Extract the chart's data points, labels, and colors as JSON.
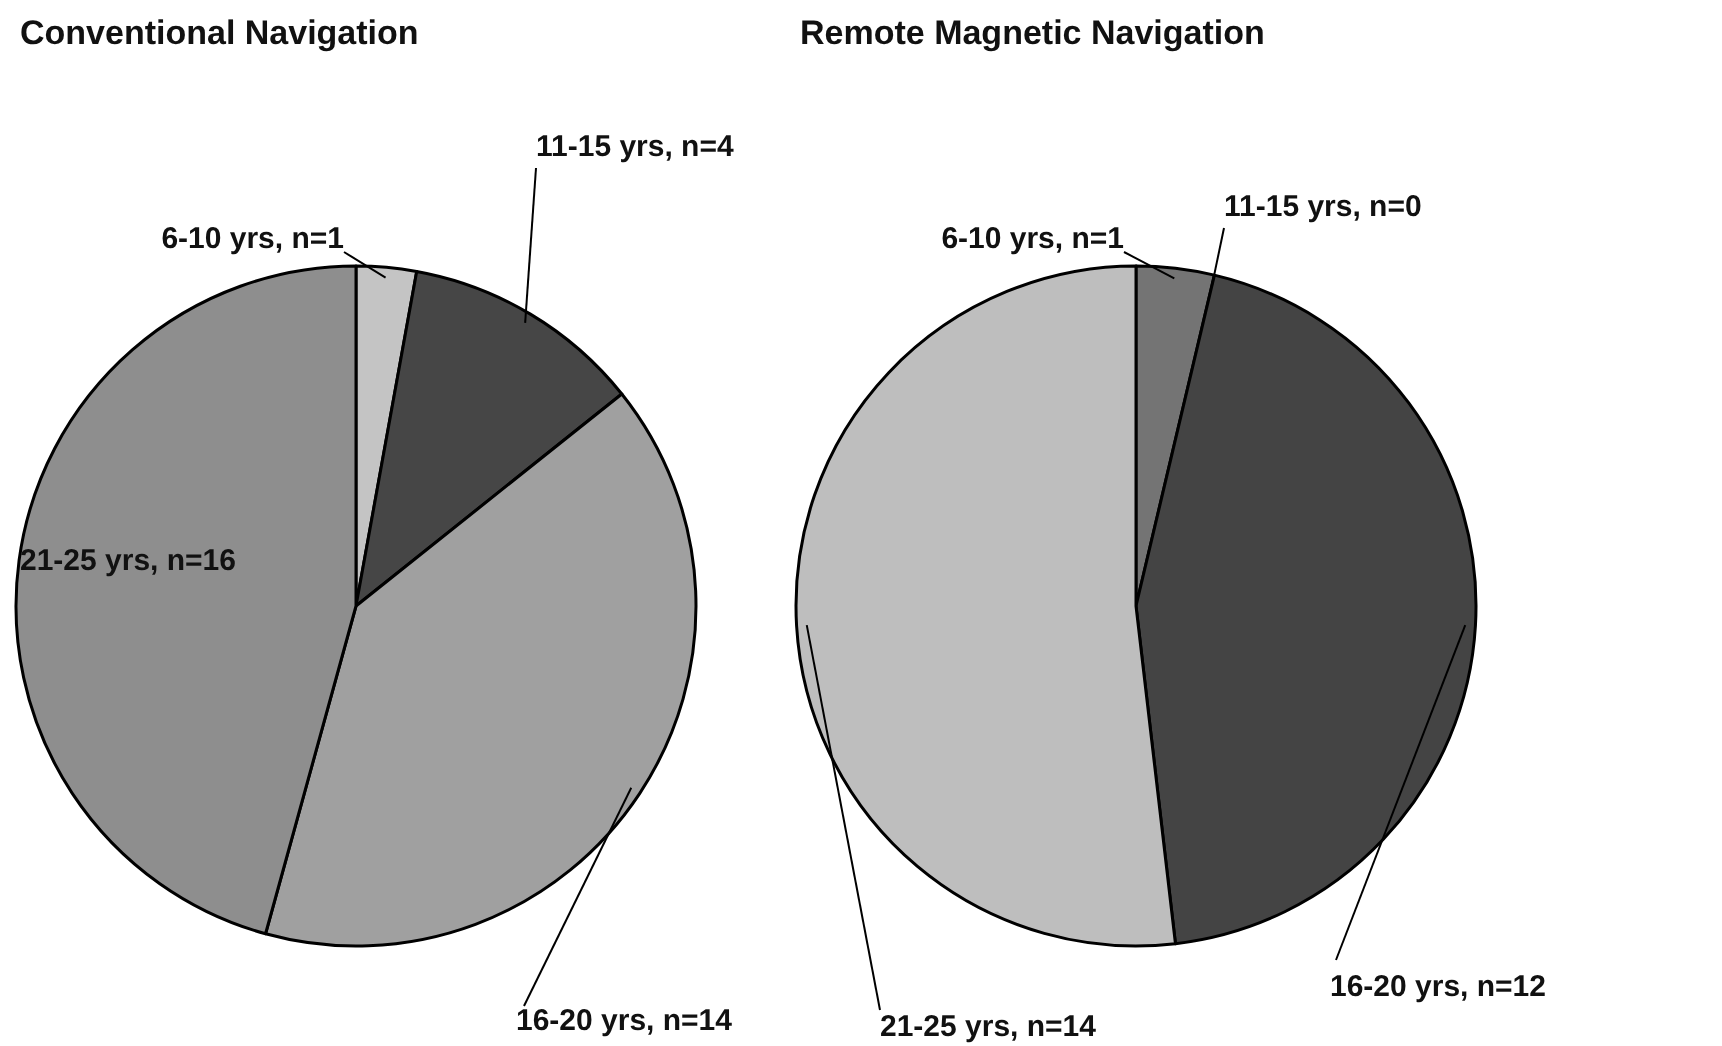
{
  "chart_data": [
    {
      "type": "pie",
      "title": "Conventional Navigation",
      "categories": [
        "6-10 yrs, n=1",
        "11-15 yrs, n=4",
        "16-20 yrs, n=14",
        "21-25 yrs, n=16"
      ],
      "values": [
        1,
        4,
        14,
        16
      ],
      "colors": [
        "#c4c4c4",
        "#464646",
        "#a0a0a0",
        "#8e8e8e"
      ]
    },
    {
      "type": "pie",
      "title": "Remote Magnetic Navigation",
      "categories": [
        "6-10 yrs, n=1",
        "11-15 yrs, n=0",
        "16-20 yrs, n=12",
        "21-25 yrs, n=14"
      ],
      "values": [
        1,
        0,
        12,
        14
      ],
      "colors": [
        "#747474",
        null,
        "#444444",
        "#bebebe"
      ]
    }
  ]
}
